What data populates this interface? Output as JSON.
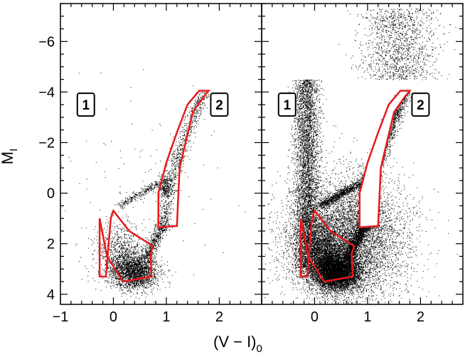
{
  "chart_data": {
    "type": "scatter",
    "panels": [
      {
        "name": "left-panel",
        "x_range": [
          -1.0,
          2.8
        ],
        "y_range": [
          4.4,
          -7.5
        ],
        "x_ticks": [
          -1,
          0,
          1,
          2
        ],
        "x_tick_labels": [
          "−1",
          "0",
          "1",
          "2"
        ],
        "y_ticks": [
          -6,
          -4,
          -2,
          0,
          2,
          4
        ],
        "y_tick_labels": [
          "−6",
          "−4",
          "−2",
          "0",
          "2",
          "4"
        ],
        "regions": [
          {
            "label": "1",
            "polygon": [
              [
                -0.26,
                3.3
              ],
              [
                -0.14,
                3.3
              ],
              [
                -0.05,
                1.0
              ],
              [
                0.0,
                0.7
              ],
              [
                0.3,
                1.5
              ],
              [
                0.75,
                2.1
              ],
              [
                0.7,
                2.4
              ],
              [
                0.72,
                3.3
              ],
              [
                0.18,
                3.5
              ],
              [
                -0.12,
                2.5
              ],
              [
                -0.26,
                1.0
              ]
            ]
          },
          {
            "label": "2",
            "polygon": [
              [
                0.85,
                1.35
              ],
              [
                0.85,
                0.0
              ],
              [
                1.0,
                -1.2
              ],
              [
                1.2,
                -2.4
              ],
              [
                1.4,
                -3.5
              ],
              [
                1.62,
                -4.05
              ],
              [
                1.8,
                -4.05
              ],
              [
                1.7,
                -3.8
              ],
              [
                1.5,
                -3.2
              ],
              [
                1.25,
                -1.0
              ],
              [
                1.2,
                1.3
              ]
            ]
          }
        ]
      },
      {
        "name": "right-panel",
        "x_range": [
          -1.0,
          2.8
        ],
        "y_range": [
          4.4,
          -7.5
        ],
        "x_ticks": [
          0,
          1,
          2
        ],
        "x_tick_labels": [
          "0",
          "1",
          "2"
        ],
        "y_ticks": [
          -6,
          -4,
          -2,
          0,
          2,
          4
        ],
        "y_tick_labels": [],
        "regions": [
          {
            "label": "1",
            "polygon": [
              [
                -0.26,
                3.3
              ],
              [
                -0.14,
                3.3
              ],
              [
                -0.05,
                1.0
              ],
              [
                0.0,
                0.7
              ],
              [
                0.3,
                1.5
              ],
              [
                0.75,
                2.1
              ],
              [
                0.7,
                2.4
              ],
              [
                0.72,
                3.3
              ],
              [
                0.18,
                3.5
              ],
              [
                -0.12,
                2.5
              ],
              [
                -0.26,
                1.0
              ]
            ]
          },
          {
            "label": "2",
            "polygon": [
              [
                0.85,
                1.35
              ],
              [
                0.85,
                0.0
              ],
              [
                1.0,
                -1.2
              ],
              [
                1.2,
                -2.4
              ],
              [
                1.4,
                -3.5
              ],
              [
                1.62,
                -4.05
              ],
              [
                1.8,
                -4.05
              ],
              [
                1.7,
                -3.8
              ],
              [
                1.5,
                -3.2
              ],
              [
                1.25,
                -1.0
              ],
              [
                1.2,
                1.3
              ]
            ]
          }
        ]
      }
    ],
    "xlabel": "(V − I)",
    "xlabel_sub": "0",
    "ylabel": "M",
    "ylabel_sub": "I",
    "point_color": "#000000",
    "region_color": "#e8191c"
  }
}
